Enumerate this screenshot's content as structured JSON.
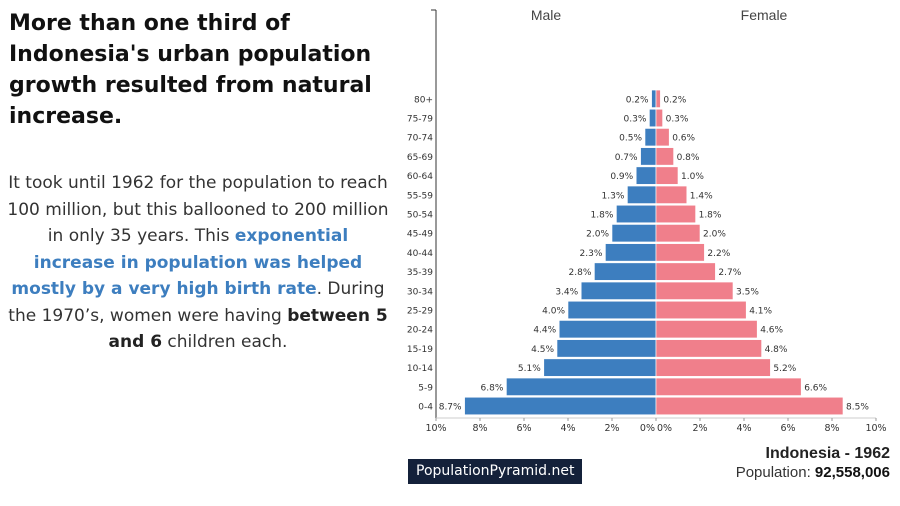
{
  "headline": "More than one third of Indonesia's urban population growth resulted from natural increase.",
  "body": {
    "part1": "It took until 1962 for the population to reach 100 million, but this ballooned to 200 million in only 35 years. This ",
    "highlight": "exponential increase in population was helped mostly by a very high birth rate",
    "part2": ". During the 1970’s, women were having ",
    "bold": "between 5 and 6",
    "part3": " children each."
  },
  "brand": "PopulationPyramid.net",
  "country_title": "Indonesia - 1962",
  "population_label": "Population:",
  "population_value": "92,558,006",
  "colors": {
    "male": "#3d7ebf",
    "female": "#f07f8b",
    "accent": "#3d7ebf",
    "badge": "#14213a"
  },
  "chart_data": {
    "type": "bar",
    "orientation": "horizontal-population-pyramid",
    "categories": [
      "0-4",
      "5-9",
      "10-14",
      "15-19",
      "20-24",
      "25-29",
      "30-34",
      "35-39",
      "40-44",
      "45-49",
      "50-54",
      "55-59",
      "60-64",
      "65-69",
      "70-74",
      "75-79",
      "80+"
    ],
    "series": [
      {
        "name": "Male",
        "values": [
          8.7,
          6.8,
          5.1,
          4.5,
          4.4,
          4.0,
          3.4,
          2.8,
          2.3,
          2.0,
          1.8,
          1.3,
          0.9,
          0.7,
          0.5,
          0.3,
          0.2
        ]
      },
      {
        "name": "Female",
        "values": [
          8.5,
          6.6,
          5.2,
          4.8,
          4.6,
          4.1,
          3.5,
          2.7,
          2.2,
          2.0,
          1.8,
          1.4,
          1.0,
          0.8,
          0.6,
          0.3,
          0.2
        ]
      }
    ],
    "xticks": [
      "10%",
      "8%",
      "6%",
      "4%",
      "2%",
      "0%",
      "0%",
      "2%",
      "4%",
      "6%",
      "8%",
      "10%"
    ],
    "xlim": [
      -10,
      10
    ],
    "units": "%"
  }
}
